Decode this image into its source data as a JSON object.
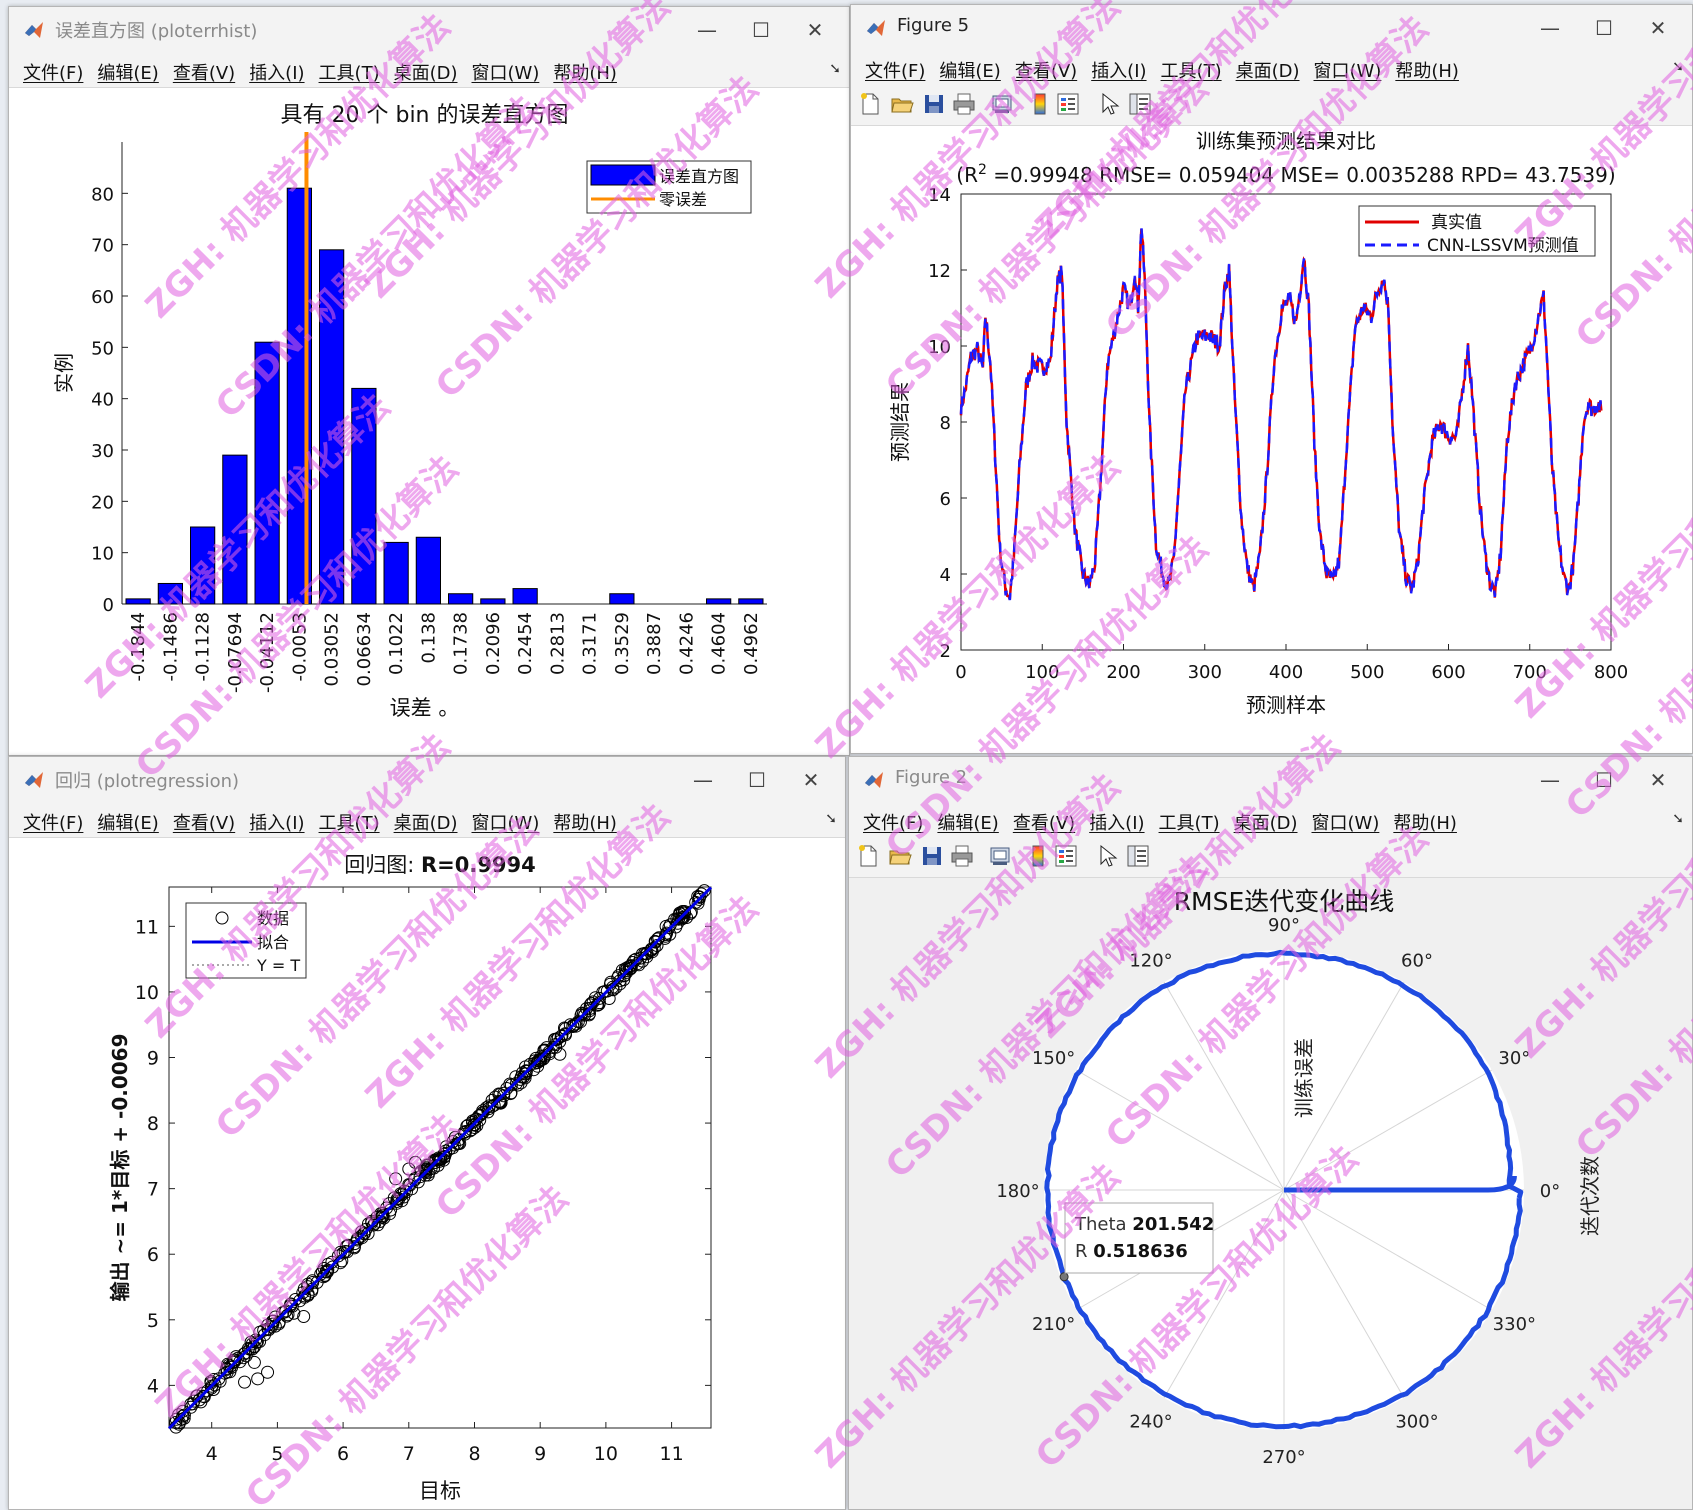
{
  "menus": [
    "文件(F)",
    "编辑(E)",
    "查看(V)",
    "插入(I)",
    "工具(T)",
    "桌面(D)",
    "窗口(W)",
    "帮助(H)"
  ],
  "windows": {
    "hist": {
      "title": "误差直方图 (ploterrhist)"
    },
    "fig5": {
      "title": "Figure 5"
    },
    "reg": {
      "title": "回归 (plotregression)"
    },
    "fig2": {
      "title": "Figure 2"
    }
  },
  "window_controls": {
    "minimize": "—",
    "maximize": "☐",
    "close": "✕"
  },
  "icons": {
    "matlab": "matlab-logo-icon",
    "toolbar": [
      "new-file-icon",
      "open-folder-icon",
      "save-icon",
      "print-icon",
      "print-preview-icon",
      "colorbar-icon",
      "legend-icon",
      "pointer-icon",
      "property-inspector-icon"
    ]
  },
  "colors": {
    "bars": "#0000ff",
    "zero_line": "#ff8c00",
    "true_line": "#e00000",
    "pred_line": "#1a1aff",
    "polar_line": "#1f4be0"
  },
  "watermark": {
    "zgh": "ZGH: 机器学习和优化算法",
    "csdn": "CSDN: 机器学习和优化算法"
  },
  "chart_data": [
    {
      "type": "bar",
      "title": "具有 20 个 bin 的误差直方图",
      "xlabel": "误差 。",
      "ylabel": "实例",
      "categories": [
        "-0.1844",
        "-0.1486",
        "-0.1128",
        "-0.07694",
        "-0.04112",
        "-0.0053",
        "0.03052",
        "0.06634",
        "0.1022",
        "0.138",
        "0.1738",
        "0.2096",
        "0.2454",
        "0.2813",
        "0.3171",
        "0.3529",
        "0.3887",
        "0.4246",
        "0.4604",
        "0.4962"
      ],
      "values": [
        1,
        4,
        15,
        29,
        51,
        81,
        69,
        42,
        12,
        13,
        2,
        1,
        3,
        0,
        0,
        2,
        0,
        0,
        1,
        1
      ],
      "ylim": [
        0,
        90
      ],
      "yticks": [
        0,
        10,
        20,
        30,
        40,
        50,
        60,
        70,
        80
      ],
      "zero_error_position": 5,
      "legend": [
        "误差直方图",
        "零误差"
      ],
      "legend_position": "top-right"
    },
    {
      "type": "line",
      "title": "训练集预测结果对比",
      "subtitle_parts": {
        "open": "(R",
        "sup": "2",
        "rest": " =0.99948 RMSE= 0.059404 MSE= 0.0035288 RPD= 43.7539)"
      },
      "xlabel": "预测样本",
      "ylabel": "预测结果",
      "xlim": [
        0,
        800
      ],
      "ylim": [
        2,
        14
      ],
      "xticks": [
        0,
        100,
        200,
        300,
        400,
        500,
        600,
        700,
        800
      ],
      "yticks": [
        2,
        4,
        6,
        8,
        10,
        12,
        14
      ],
      "legend": [
        "真实值",
        "CNN-LSSVM预测值"
      ],
      "legend_position": "top-right",
      "keypoints": [
        [
          0,
          8.4
        ],
        [
          5,
          8.8
        ],
        [
          12,
          9.7
        ],
        [
          20,
          9.9
        ],
        [
          27,
          9.4
        ],
        [
          30,
          10.8
        ],
        [
          36,
          9.6
        ],
        [
          42,
          7.2
        ],
        [
          48,
          4.6
        ],
        [
          55,
          3.6
        ],
        [
          60,
          3.4
        ],
        [
          65,
          4.4
        ],
        [
          72,
          6.8
        ],
        [
          80,
          8.9
        ],
        [
          88,
          9.6
        ],
        [
          100,
          9.4
        ],
        [
          110,
          9.6
        ],
        [
          118,
          11.6
        ],
        [
          124,
          12.0
        ],
        [
          130,
          8.0
        ],
        [
          140,
          5.2
        ],
        [
          150,
          4.0
        ],
        [
          158,
          3.7
        ],
        [
          165,
          4.3
        ],
        [
          172,
          6.5
        ],
        [
          180,
          9.5
        ],
        [
          190,
          10.5
        ],
        [
          200,
          11.5
        ],
        [
          208,
          11.0
        ],
        [
          214,
          12.0
        ],
        [
          218,
          11.0
        ],
        [
          222,
          13.2
        ],
        [
          226,
          11.8
        ],
        [
          232,
          8.0
        ],
        [
          240,
          4.8
        ],
        [
          248,
          4.0
        ],
        [
          256,
          3.7
        ],
        [
          262,
          4.4
        ],
        [
          268,
          6.3
        ],
        [
          276,
          8.8
        ],
        [
          290,
          10.2
        ],
        [
          305,
          10.3
        ],
        [
          318,
          10.0
        ],
        [
          325,
          11.6
        ],
        [
          330,
          12.0
        ],
        [
          336,
          9.0
        ],
        [
          345,
          5.5
        ],
        [
          352,
          4.2
        ],
        [
          360,
          3.6
        ],
        [
          368,
          4.5
        ],
        [
          376,
          6.5
        ],
        [
          385,
          9.5
        ],
        [
          395,
          11.0
        ],
        [
          405,
          11.2
        ],
        [
          412,
          10.6
        ],
        [
          418,
          11.6
        ],
        [
          422,
          12.4
        ],
        [
          428,
          11.0
        ],
        [
          436,
          7.0
        ],
        [
          442,
          5.0
        ],
        [
          450,
          4.0
        ],
        [
          458,
          3.8
        ],
        [
          466,
          4.4
        ],
        [
          475,
          7.5
        ],
        [
          485,
          10.5
        ],
        [
          495,
          11.0
        ],
        [
          505,
          10.8
        ],
        [
          512,
          11.4
        ],
        [
          520,
          11.8
        ],
        [
          526,
          11.0
        ],
        [
          532,
          7.5
        ],
        [
          540,
          5.0
        ],
        [
          548,
          3.9
        ],
        [
          555,
          3.6
        ],
        [
          562,
          4.3
        ],
        [
          570,
          6.0
        ],
        [
          580,
          7.5
        ],
        [
          590,
          8.0
        ],
        [
          600,
          7.6
        ],
        [
          610,
          7.6
        ],
        [
          618,
          9.0
        ],
        [
          624,
          10.0
        ],
        [
          630,
          8.5
        ],
        [
          638,
          6.0
        ],
        [
          645,
          4.5
        ],
        [
          652,
          3.7
        ],
        [
          658,
          3.5
        ],
        [
          664,
          4.5
        ],
        [
          672,
          7.5
        ],
        [
          682,
          9.0
        ],
        [
          692,
          9.5
        ],
        [
          702,
          10.0
        ],
        [
          708,
          10.5
        ],
        [
          713,
          11.0
        ],
        [
          717,
          11.3
        ],
        [
          721,
          9.8
        ],
        [
          727,
          7.0
        ],
        [
          735,
          4.9
        ],
        [
          742,
          3.9
        ],
        [
          748,
          3.6
        ],
        [
          754,
          4.3
        ],
        [
          760,
          6.0
        ],
        [
          766,
          8.0
        ],
        [
          772,
          8.5
        ],
        [
          778,
          8.3
        ],
        [
          784,
          8.5
        ],
        [
          788,
          8.3
        ]
      ]
    },
    {
      "type": "scatter",
      "title_prefix": "回归图: ",
      "title_value": "R=0.9994",
      "xlabel": "目标",
      "ylabel": "输出 ~= 1*目标 + -0.0069",
      "xlim": [
        3.35,
        11.6
      ],
      "ylim": [
        3.35,
        11.6
      ],
      "xticks": [
        4,
        5,
        6,
        7,
        8,
        9,
        10,
        11
      ],
      "yticks": [
        4,
        5,
        6,
        7,
        8,
        9,
        10,
        11
      ],
      "fit": {
        "slope": 1,
        "intercept": -0.0069
      },
      "legend": [
        "数据",
        "拟合",
        "Y = T"
      ],
      "legend_position": "top-left",
      "outliers": [
        [
          4.5,
          4.05
        ],
        [
          4.7,
          4.1
        ],
        [
          4.85,
          4.2
        ],
        [
          4.65,
          4.35
        ],
        [
          5.4,
          5.05
        ],
        [
          5.25,
          5.1
        ],
        [
          7.1,
          7.4
        ],
        [
          7.0,
          7.3
        ],
        [
          6.8,
          7.15
        ],
        [
          8.55,
          8.45
        ],
        [
          9.3,
          9.05
        ],
        [
          10.05,
          9.9
        ]
      ]
    },
    {
      "type": "polar",
      "title": "RMSE迭代变化曲线",
      "r_axis_label": "训练误差",
      "theta_axis_label": "迭代次数",
      "theta_ticks": [
        "0°",
        "30°",
        "60°",
        "90°",
        "120°",
        "150°",
        "180°",
        "210°",
        "240°",
        "270°",
        "300°",
        "330°"
      ],
      "datatip": {
        "theta_label": "Theta",
        "theta_value": "201.542",
        "r_label": "R",
        "r_value": "0.518636"
      }
    }
  ]
}
